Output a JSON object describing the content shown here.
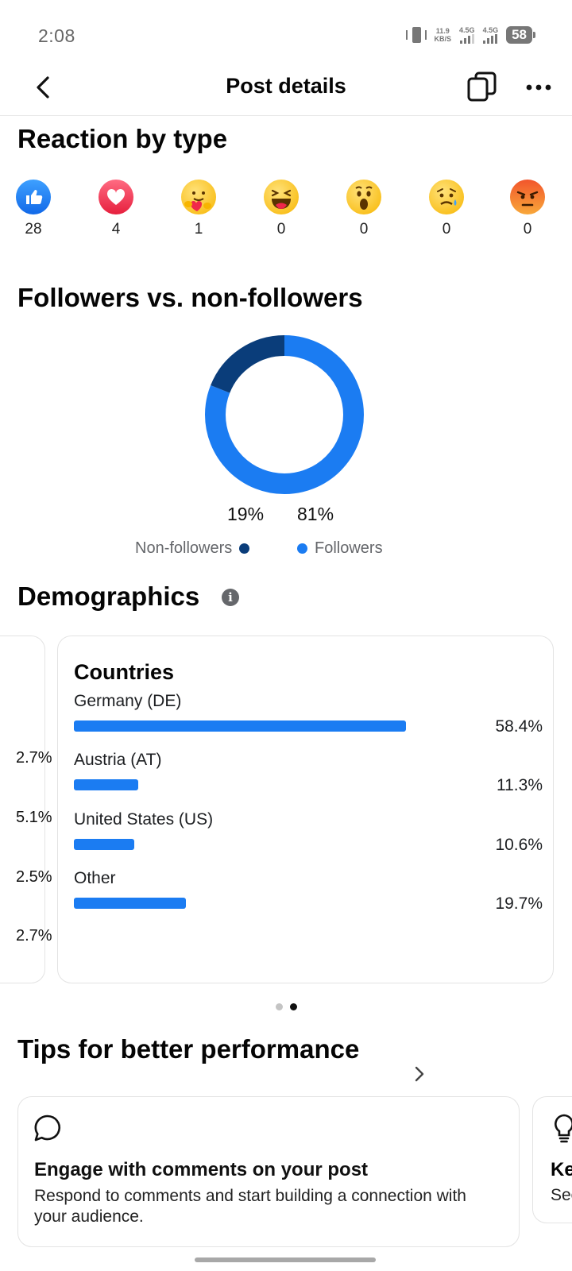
{
  "status_bar": {
    "time": "2:08",
    "net_speed_value": "11.9",
    "net_speed_unit": "KB/S",
    "sim1_label": "4.5G",
    "sim2_label": "4.5G",
    "battery": "58"
  },
  "header": {
    "title": "Post details",
    "icons": [
      "back-icon",
      "copy-icon",
      "more-icon"
    ]
  },
  "reactions": {
    "title": "Reaction by type",
    "items": [
      {
        "icon": "like-icon",
        "count": "28"
      },
      {
        "icon": "love-icon",
        "count": "4"
      },
      {
        "icon": "care-icon",
        "count": "1"
      },
      {
        "icon": "haha-icon",
        "count": "0"
      },
      {
        "icon": "wow-icon",
        "count": "0"
      },
      {
        "icon": "sad-icon",
        "count": "0"
      },
      {
        "icon": "angry-icon",
        "count": "0"
      }
    ]
  },
  "followers": {
    "title": "Followers vs. non-followers",
    "non_followers_pct": "19%",
    "followers_pct": "81%",
    "non_followers_label": "Non-followers",
    "followers_label": "Followers",
    "colors": {
      "non_followers": "#0a3d7a",
      "followers": "#1b7cf2"
    }
  },
  "chart_data": {
    "type": "pie",
    "categories": [
      "Non-followers",
      "Followers"
    ],
    "values": [
      19,
      81
    ],
    "colors": [
      "#0a3d7a",
      "#1b7cf2"
    ],
    "style": "donut"
  },
  "demographics": {
    "title": "Demographics",
    "prev_card_values": [
      "2.7%",
      "5.1%",
      "2.5%",
      "2.7%"
    ],
    "countries": {
      "title": "Countries",
      "rows": [
        {
          "name": "Germany (DE)",
          "pct_label": "58.4%",
          "fill": 0.973
        },
        {
          "name": "Austria (AT)",
          "pct_label": "11.3%",
          "fill": 0.188
        },
        {
          "name": "United States (US)",
          "pct_label": "10.6%",
          "fill": 0.177
        },
        {
          "name": "Other",
          "pct_label": "19.7%",
          "fill": 0.328
        }
      ]
    },
    "pager": {
      "count": 2,
      "active": 1
    }
  },
  "tips": {
    "title": "Tips for better performance",
    "cards": [
      {
        "icon": "comment-icon",
        "title": "Engage with comments on your post",
        "description": "Respond to comments and start building a connection with your audience."
      },
      {
        "icon": "lightbulb-icon",
        "title": "Ke",
        "description": "See"
      }
    ]
  },
  "accent": "#1b7cf2"
}
